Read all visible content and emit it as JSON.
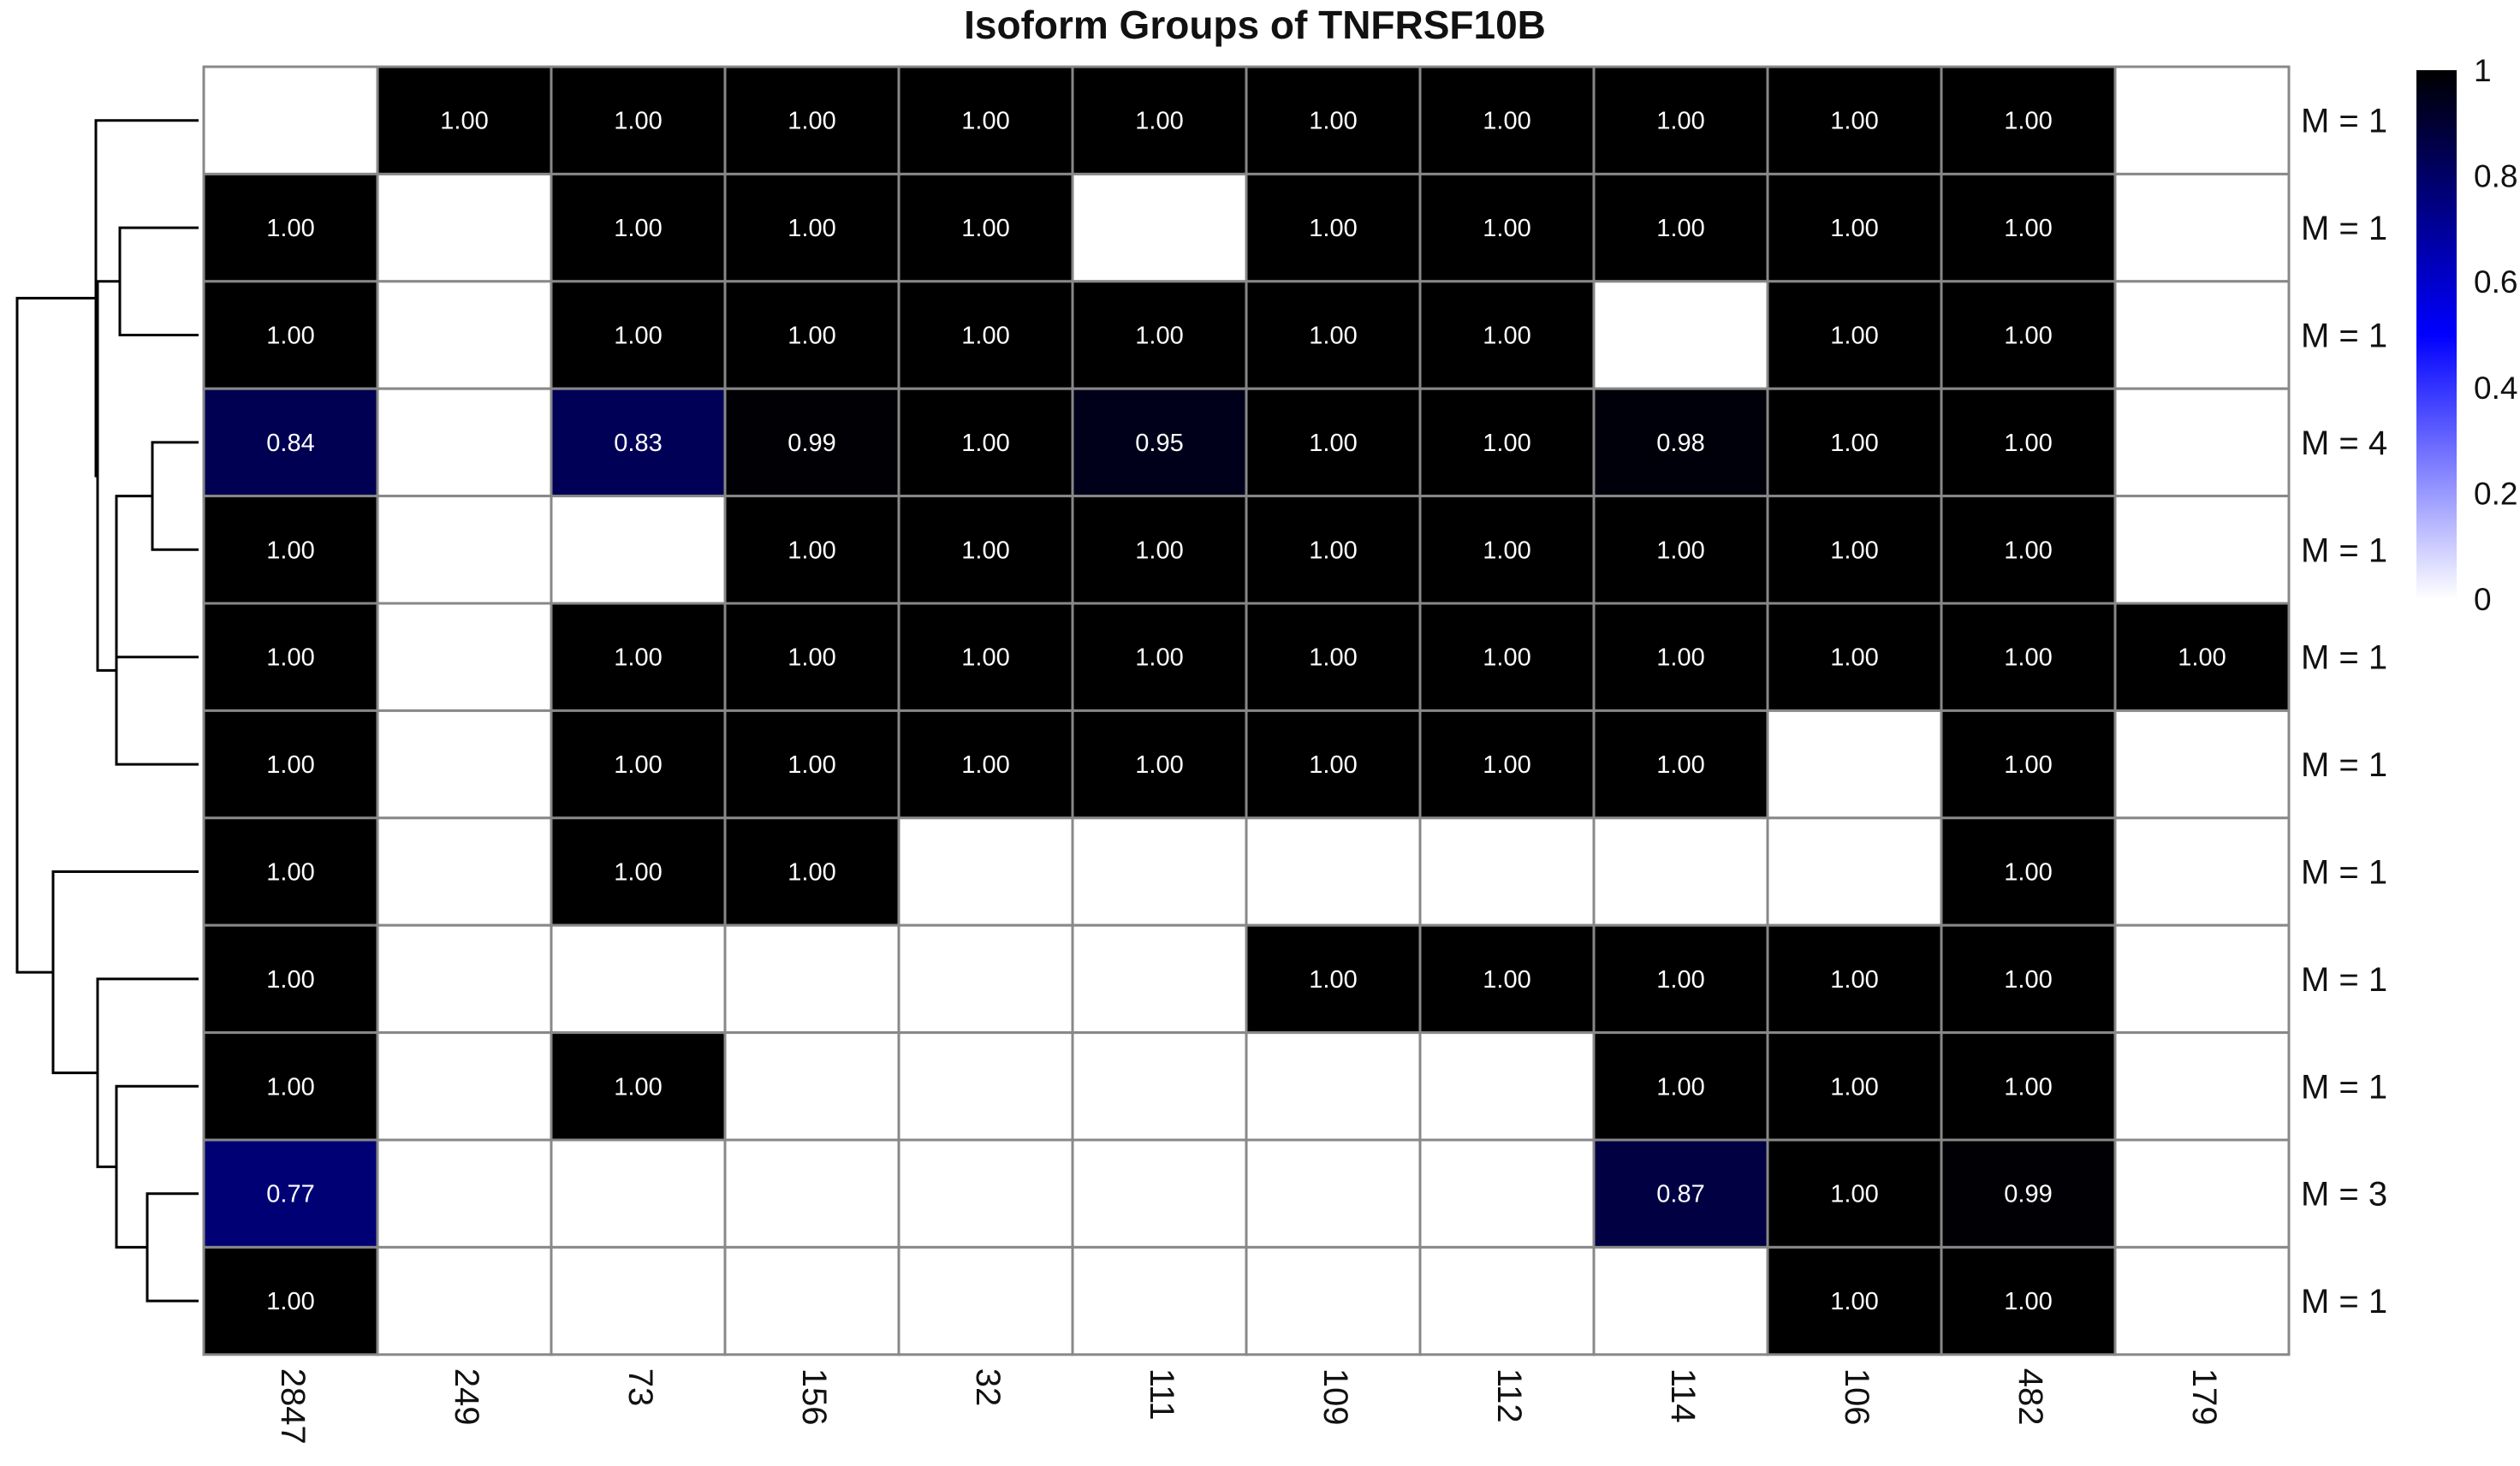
{
  "chart_data": {
    "type": "heatmap",
    "title": "Isoform Groups of TNFRSF10B",
    "columns": [
      "2847",
      "249",
      "73",
      "156",
      "32",
      "111",
      "109",
      "112",
      "114",
      "106",
      "482",
      "179"
    ],
    "row_labels": [
      "M = 1",
      "M = 1",
      "M = 1",
      "M = 4",
      "M = 1",
      "M = 1",
      "M = 1",
      "M = 1",
      "M = 1",
      "M = 1",
      "M = 3",
      "M = 1"
    ],
    "values": [
      [
        null,
        1.0,
        1.0,
        1.0,
        1.0,
        1.0,
        1.0,
        1.0,
        1.0,
        1.0,
        1.0,
        null
      ],
      [
        1.0,
        null,
        1.0,
        1.0,
        1.0,
        null,
        1.0,
        1.0,
        1.0,
        1.0,
        1.0,
        null
      ],
      [
        1.0,
        null,
        1.0,
        1.0,
        1.0,
        1.0,
        1.0,
        1.0,
        null,
        1.0,
        1.0,
        null
      ],
      [
        0.84,
        null,
        0.83,
        0.99,
        1.0,
        0.95,
        1.0,
        1.0,
        0.98,
        1.0,
        1.0,
        null
      ],
      [
        1.0,
        null,
        null,
        1.0,
        1.0,
        1.0,
        1.0,
        1.0,
        1.0,
        1.0,
        1.0,
        null
      ],
      [
        1.0,
        null,
        1.0,
        1.0,
        1.0,
        1.0,
        1.0,
        1.0,
        1.0,
        1.0,
        1.0,
        1.0
      ],
      [
        1.0,
        null,
        1.0,
        1.0,
        1.0,
        1.0,
        1.0,
        1.0,
        1.0,
        null,
        1.0,
        null
      ],
      [
        1.0,
        null,
        1.0,
        1.0,
        null,
        null,
        null,
        null,
        null,
        null,
        1.0,
        null
      ],
      [
        1.0,
        null,
        null,
        null,
        null,
        null,
        1.0,
        1.0,
        1.0,
        1.0,
        1.0,
        null
      ],
      [
        1.0,
        null,
        1.0,
        null,
        null,
        null,
        null,
        null,
        1.0,
        1.0,
        1.0,
        null
      ],
      [
        0.77,
        null,
        null,
        null,
        null,
        null,
        null,
        null,
        0.87,
        1.0,
        0.99,
        null
      ],
      [
        1.0,
        null,
        null,
        null,
        null,
        null,
        null,
        null,
        null,
        1.0,
        1.0,
        null
      ]
    ],
    "value_format_decimals": 2,
    "colorbar": {
      "min": 0,
      "max": 1,
      "tick_labels": [
        "1",
        "0.8",
        "0.6",
        "0.4",
        "0.2",
        "0"
      ],
      "tick_values": [
        1,
        0.8,
        0.6,
        0.4,
        0.2,
        0
      ],
      "colors": {
        "low": "#ffffff",
        "mid": "#0000ff",
        "high": "#000000"
      }
    },
    "grid_color": "#888888",
    "dendrogram": "left",
    "legend_placement": "right"
  }
}
